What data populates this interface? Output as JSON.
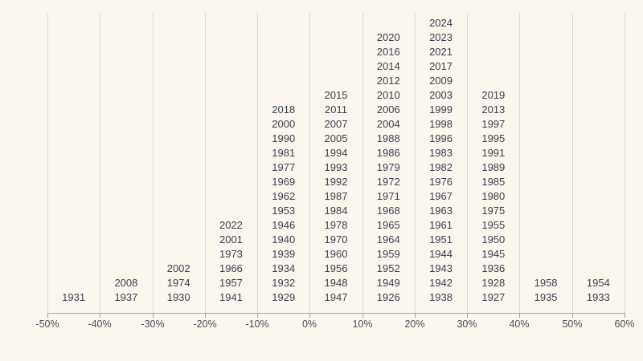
{
  "chart_data": {
    "type": "histogram",
    "description": "Stacked year labels forming a histogram of annual returns; each column is a 10% return bucket, each cell is a year, columns bottom-aligned on the x-axis.",
    "title": "",
    "xlabel": "",
    "ylabel": "",
    "grid": "vertical-only",
    "legend": "none",
    "x_axis": {
      "min": -50,
      "max": 60,
      "step": 10,
      "tick_labels": [
        "-50%",
        "-40%",
        "-30%",
        "-20%",
        "-10%",
        "0%",
        "10%",
        "20%",
        "30%",
        "40%",
        "50%",
        "60%"
      ]
    },
    "buckets": [
      {
        "range": "-50% to -40%",
        "count": 1,
        "years_top_to_bottom": [
          "1931"
        ]
      },
      {
        "range": "-40% to -30%",
        "count": 2,
        "years_top_to_bottom": [
          "2008",
          "1937"
        ]
      },
      {
        "range": "-30% to -20%",
        "count": 3,
        "years_top_to_bottom": [
          "2002",
          "1974",
          "1930"
        ]
      },
      {
        "range": "-20% to -10%",
        "count": 6,
        "years_top_to_bottom": [
          "2022",
          "2001",
          "1973",
          "1966",
          "1957",
          "1941"
        ]
      },
      {
        "range": "-10% to 0%",
        "count": 14,
        "years_top_to_bottom": [
          "2018",
          "2000",
          "1990",
          "1981",
          "1977",
          "1969",
          "1962",
          "1953",
          "1946",
          "1940",
          "1939",
          "1934",
          "1932",
          "1929"
        ]
      },
      {
        "range": "0% to 10%",
        "count": 15,
        "years_top_to_bottom": [
          "2015",
          "2011",
          "2007",
          "2005",
          "1994",
          "1993",
          "1992",
          "1987",
          "1984",
          "1978",
          "1970",
          "1960",
          "1956",
          "1948",
          "1947"
        ]
      },
      {
        "range": "10% to 20%",
        "count": 19,
        "years_top_to_bottom": [
          "2020",
          "2016",
          "2014",
          "2012",
          "2010",
          "2006",
          "2004",
          "1988",
          "1986",
          "1979",
          "1972",
          "1971",
          "1968",
          "1965",
          "1964",
          "1959",
          "1952",
          "1949",
          "1926"
        ]
      },
      {
        "range": "20% to 30%",
        "count": 20,
        "years_top_to_bottom": [
          "2024",
          "2023",
          "2021",
          "2017",
          "2009",
          "2003",
          "1999",
          "1998",
          "1996",
          "1983",
          "1982",
          "1976",
          "1967",
          "1963",
          "1961",
          "1951",
          "1944",
          "1943",
          "1942",
          "1938"
        ]
      },
      {
        "range": "30% to 40%",
        "count": 15,
        "years_top_to_bottom": [
          "2019",
          "2013",
          "1997",
          "1995",
          "1991",
          "1989",
          "1985",
          "1980",
          "1975",
          "1955",
          "1950",
          "1945",
          "1936",
          "1928",
          "1927"
        ]
      },
      {
        "range": "40% to 50%",
        "count": 2,
        "years_top_to_bottom": [
          "1958",
          "1935"
        ]
      },
      {
        "range": "50% to 60%",
        "count": 2,
        "years_top_to_bottom": [
          "1954",
          "1933"
        ]
      }
    ],
    "colors": {
      "background": "#faf6ee",
      "gridline": "#ddd9d2",
      "axis": "#a9a69e",
      "year_text": "#3c4150",
      "tick_text": "#4a4e58"
    }
  }
}
